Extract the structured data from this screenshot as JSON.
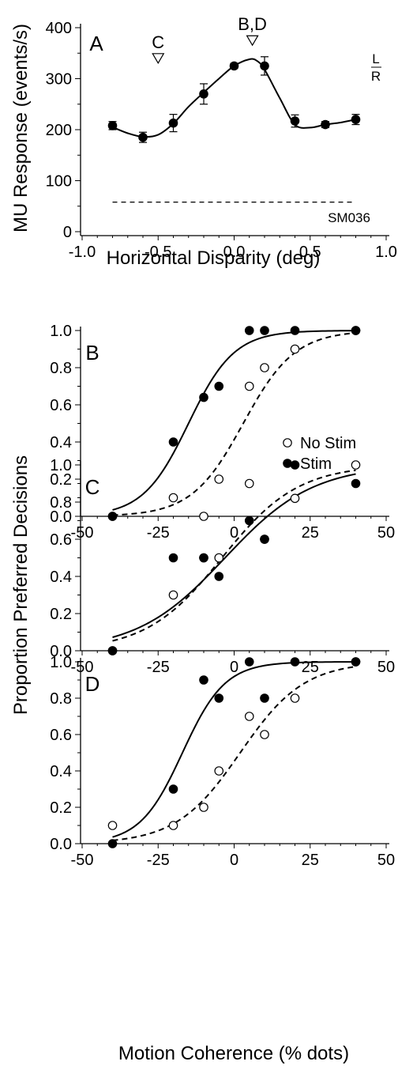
{
  "chart_data": [
    {
      "panel": "A",
      "type": "line",
      "xlabel": "Horizontal Disparity (deg)",
      "ylabel": "MU Response (events/s)",
      "xlim": [
        -1.0,
        1.0
      ],
      "ylim": [
        0,
        400
      ],
      "xticks": [
        "-1.0",
        "-0.5",
        "0.0",
        "0.5",
        "1.0"
      ],
      "yticks": [
        "0",
        "100",
        "200",
        "300",
        "400"
      ],
      "grid": false,
      "series": [
        {
          "marker": "filled-circle",
          "x": [
            -0.8,
            -0.6,
            -0.4,
            -0.2,
            0.0,
            0.2,
            0.4,
            0.6,
            0.8
          ],
          "y": [
            208,
            185,
            213,
            270,
            325,
            325,
            217,
            210,
            220
          ],
          "err": [
            8,
            10,
            17,
            20,
            5,
            18,
            12,
            6,
            10
          ]
        }
      ],
      "fit_curve": {
        "x": [
          -0.8,
          -0.7,
          -0.6,
          -0.5,
          -0.4,
          -0.3,
          -0.2,
          -0.1,
          0.0,
          0.1,
          0.15,
          0.2,
          0.3,
          0.4,
          0.5,
          0.6,
          0.7,
          0.8
        ],
        "y": [
          205,
          193,
          186,
          190,
          212,
          245,
          273,
          300,
          325,
          338,
          335,
          318,
          262,
          210,
          204,
          210,
          214,
          220
        ]
      },
      "baseline": 58,
      "annotations": [
        {
          "text": "C",
          "x": -0.5,
          "y": 360
        },
        {
          "text": "B,D",
          "x": 0.12,
          "y": 395
        }
      ],
      "corner_labels": [
        "L",
        "R"
      ],
      "site_label": "SM036"
    },
    {
      "panel": "B",
      "type": "scatter",
      "xlim": [
        -50,
        50
      ],
      "ylim": [
        0,
        1.0
      ],
      "xticks": [
        "-50",
        "-25",
        "0",
        "25",
        "50"
      ],
      "yticks": [
        "0.0",
        "0.2",
        "0.4",
        "0.6",
        "0.8",
        "1.0"
      ],
      "series": [
        {
          "name": "No Stim",
          "marker": "open-circle",
          "x": [
            -40,
            -20,
            -10,
            -5,
            5,
            10,
            20,
            40
          ],
          "y": [
            0.0,
            0.1,
            0.0,
            0.2,
            0.7,
            0.8,
            0.9,
            1.0
          ],
          "fit": {
            "mu": 3,
            "s": 8.5,
            "style": "dashed"
          }
        },
        {
          "name": "Stim",
          "marker": "filled-circle",
          "x": [
            -40,
            -20,
            -10,
            -5,
            5,
            10,
            20,
            40
          ],
          "y": [
            0.0,
            0.4,
            0.64,
            0.7,
            1.0,
            1.0,
            1.0,
            1.0
          ],
          "fit": {
            "mu": -15,
            "s": 7.5,
            "style": "solid"
          }
        }
      ],
      "legend": "right-middle"
    },
    {
      "panel": "C",
      "type": "scatter",
      "xlim": [
        -50,
        50
      ],
      "ylim": [
        0,
        1.0
      ],
      "xticks": [
        "-50",
        "-25",
        "0",
        "25",
        "50"
      ],
      "yticks": [
        "0.0",
        "0.2",
        "0.4",
        "0.6",
        "0.8",
        "1.0"
      ],
      "series": [
        {
          "name": "No Stim",
          "marker": "open-circle",
          "x": [
            -40,
            -20,
            -10,
            -5,
            5,
            10,
            20,
            40
          ],
          "y": [
            0.0,
            0.3,
            0.5,
            0.5,
            0.9,
            0.6,
            0.82,
            1.0
          ],
          "fit": {
            "mu": -4,
            "s": 12.5,
            "style": "dashed"
          }
        },
        {
          "name": "Stim",
          "marker": "filled-circle",
          "x": [
            -40,
            -20,
            -10,
            -5,
            5,
            10,
            20,
            40
          ],
          "y": [
            0.0,
            0.5,
            0.5,
            0.4,
            0.7,
            0.6,
            1.0,
            0.9
          ],
          "fit": {
            "mu": -3,
            "s": 14.5,
            "style": "solid"
          }
        }
      ]
    },
    {
      "panel": "D",
      "type": "scatter",
      "xlabel": "Motion Coherence (% dots)",
      "xlim": [
        -50,
        50
      ],
      "ylim": [
        0,
        1.0
      ],
      "xticks": [
        "-50",
        "-25",
        "0",
        "25",
        "50"
      ],
      "yticks": [
        "0.0",
        "0.2",
        "0.4",
        "0.6",
        "0.8",
        "1.0"
      ],
      "series": [
        {
          "name": "No Stim",
          "marker": "open-circle",
          "x": [
            -40,
            -20,
            -10,
            -5,
            5,
            10,
            20,
            40
          ],
          "y": [
            0.1,
            0.1,
            0.2,
            0.4,
            0.7,
            0.6,
            0.8,
            1.0
          ],
          "fit": {
            "mu": 2,
            "s": 10.5,
            "style": "dashed"
          }
        },
        {
          "name": "Stim",
          "marker": "filled-circle",
          "x": [
            -40,
            -20,
            -10,
            -5,
            5,
            10,
            20,
            40
          ],
          "y": [
            0.0,
            0.3,
            0.9,
            0.8,
            1.0,
            0.8,
            1.0,
            1.0
          ],
          "fit": {
            "mu": -17,
            "s": 7,
            "style": "solid"
          }
        }
      ]
    }
  ],
  "shared_ylabel": "Proportion Preferred Decisions",
  "legend": {
    "nostim": "No Stim",
    "stim": "Stim"
  }
}
